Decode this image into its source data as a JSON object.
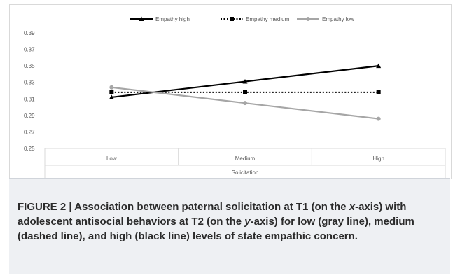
{
  "chart_data": {
    "type": "line",
    "categories": [
      "Low",
      "Medium",
      "High"
    ],
    "xlabel": "Solicitation",
    "ylabel": "",
    "ylim": [
      0.25,
      0.39
    ],
    "yticks": [
      "0.39",
      "0.37",
      "0.35",
      "0.33",
      "0.31",
      "0.29",
      "0.27",
      "0.25"
    ],
    "grid": false,
    "legend_position": "top",
    "series": [
      {
        "name": "Empathy high",
        "values": [
          0.312,
          0.331,
          0.35
        ],
        "color": "#000000",
        "dash": "solid",
        "marker": "triangle"
      },
      {
        "name": "Empathy medium",
        "values": [
          0.318,
          0.318,
          0.318
        ],
        "color": "#000000",
        "dash": "dotted",
        "marker": "square"
      },
      {
        "name": "Empathy low",
        "values": [
          0.324,
          0.305,
          0.286
        ],
        "color": "#a6a6a6",
        "dash": "solid",
        "marker": "circle"
      }
    ]
  },
  "caption": {
    "label": "FIGURE 2 | ",
    "text_1": "Association between paternal solicitation at T1 (on the ",
    "x_axis": "x",
    "text_2": "-axis) with adolescent antisocial behaviors at T2 (on the ",
    "y_axis": "y",
    "text_3": "-axis) for low (gray line), medium (dashed line), and high (black line) levels of state empathic concern."
  }
}
